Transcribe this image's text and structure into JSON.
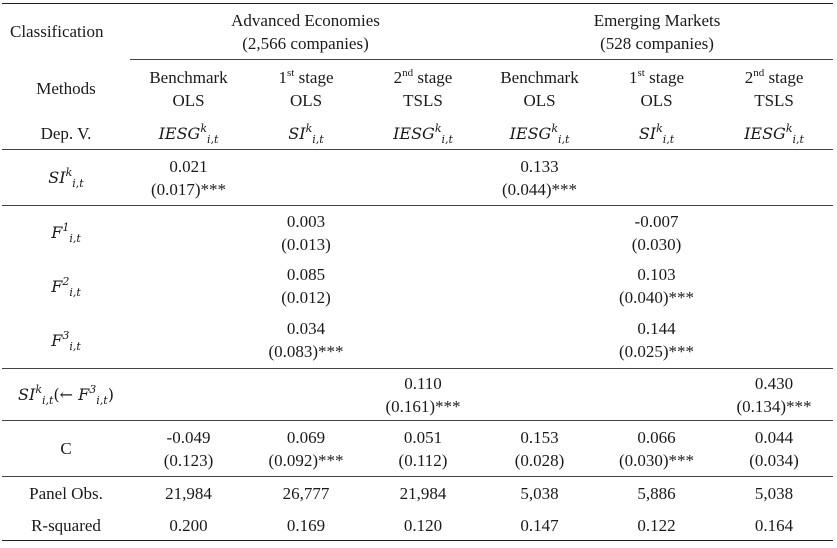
{
  "header": {
    "classification": "Classification",
    "groups": [
      {
        "name": "Advanced Economies",
        "count": "(2,566 companies)"
      },
      {
        "name": "Emerging Markets",
        "count": "(528 companies)"
      }
    ],
    "methods_label": "Methods",
    "depv_label": "Dep. V.",
    "columns": [
      {
        "line1": "Benchmark",
        "ord": "",
        "line2": "OLS",
        "dep_base": "IESG"
      },
      {
        "line1": "1",
        "ord": "st",
        "line1b": " stage",
        "line2": "OLS",
        "dep_base": "SI"
      },
      {
        "line1": "2",
        "ord": "nd",
        "line1b": " stage",
        "line2": "TSLS",
        "dep_base": "IESG"
      },
      {
        "line1": "Benchmark",
        "ord": "",
        "line2": "OLS",
        "dep_base": "IESG"
      },
      {
        "line1": "1",
        "ord": "st",
        "line1b": " stage",
        "line2": "OLS",
        "dep_base": "SI"
      },
      {
        "line1": "2",
        "ord": "nd",
        "line1b": " stage",
        "line2": "TSLS",
        "dep_base": "IESG"
      }
    ],
    "dep_sup": "k",
    "dep_sub": "i,t"
  },
  "rows": {
    "si": {
      "label_base": "SI",
      "label_sup": "k",
      "label_sub": "i,t",
      "cells": [
        [
          "0.021",
          "(0.017)***"
        ],
        [
          "",
          ""
        ],
        [
          "",
          ""
        ],
        [
          "0.133",
          "(0.044)***"
        ],
        [
          "",
          ""
        ],
        [
          "",
          ""
        ]
      ]
    },
    "f1": {
      "label_base": "F",
      "label_sup": "1",
      "label_sub": "i,t",
      "cells": [
        [
          "",
          ""
        ],
        [
          "0.003",
          "(0.013)"
        ],
        [
          "",
          ""
        ],
        [
          "",
          ""
        ],
        [
          "-0.007",
          "(0.030)"
        ],
        [
          "",
          ""
        ]
      ]
    },
    "f2": {
      "label_base": "F",
      "label_sup": "2",
      "label_sub": "i,t",
      "cells": [
        [
          "",
          ""
        ],
        [
          "0.085",
          "(0.012)"
        ],
        [
          "",
          ""
        ],
        [
          "",
          ""
        ],
        [
          "0.103",
          "(0.040)***"
        ],
        [
          "",
          ""
        ]
      ]
    },
    "f3": {
      "label_base": "F",
      "label_sup": "3",
      "label_sub": "i,t",
      "cells": [
        [
          "",
          ""
        ],
        [
          "0.034",
          "(0.083)***"
        ],
        [
          "",
          ""
        ],
        [
          "",
          ""
        ],
        [
          "0.144",
          "(0.025)***"
        ],
        [
          "",
          ""
        ]
      ]
    },
    "si_inst": {
      "label_base": "SI",
      "label_sup": "k",
      "label_sub": "i,t",
      "arrow": "(← ",
      "inst_base": "F",
      "inst_sup": "3",
      "inst_sub": "i,t",
      "close": ")",
      "cells": [
        [
          "",
          ""
        ],
        [
          "",
          ""
        ],
        [
          "0.110",
          "(0.161)***"
        ],
        [
          "",
          ""
        ],
        [
          "",
          ""
        ],
        [
          "0.430",
          "(0.134)***"
        ]
      ]
    },
    "c": {
      "label": "C",
      "cells": [
        [
          "-0.049",
          "(0.123)"
        ],
        [
          "0.069",
          "(0.092)***"
        ],
        [
          "0.051",
          "(0.112)"
        ],
        [
          "0.153",
          "(0.028)"
        ],
        [
          "0.066",
          "(0.030)***"
        ],
        [
          "0.044",
          "(0.034)"
        ]
      ]
    },
    "obs": {
      "label": "Panel Obs.",
      "values": [
        "21,984",
        "26,777",
        "21,984",
        "5,038",
        "5,886",
        "5,038"
      ]
    },
    "r2": {
      "label": "R-squared",
      "values": [
        "0.200",
        "0.169",
        "0.120",
        "0.147",
        "0.122",
        "0.164"
      ]
    }
  }
}
